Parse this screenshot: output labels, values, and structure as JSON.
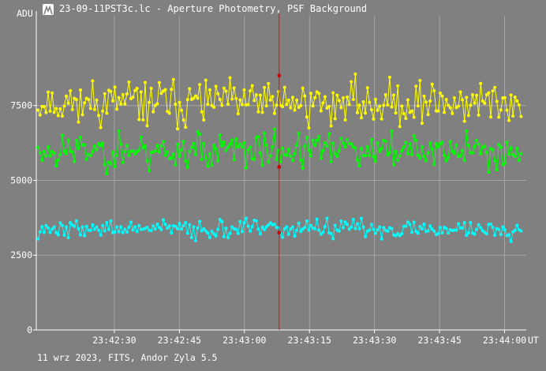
{
  "window": {
    "title": "23-09-11PST3c.lc - Aperture Photometry, PSF Background",
    "icon": "telescope-logo-icon"
  },
  "footer": {
    "text": "11 wrz 2023, FITS, Andor Zyla 5.5"
  },
  "colors": {
    "background": "#808080",
    "grid": "#a6a6a6",
    "axis": "#ffffff",
    "cursor": "#ff0000",
    "cursor_marker": "#cc0000"
  },
  "chart_data": {
    "type": "scatter",
    "ylabel": "ADU",
    "xunit": "UT",
    "grid": true,
    "xlim": [
      "23:42:12",
      "23:44:05"
    ],
    "ylim": [
      0,
      10500
    ],
    "xticks": [
      "23:42:30",
      "23:42:45",
      "23:43:00",
      "23:43:15",
      "23:43:30",
      "23:43:45",
      "23:44:00"
    ],
    "yticks": [
      0,
      2500,
      5000,
      7500
    ],
    "cursor": {
      "x": "23:43:08",
      "values": [
        8500,
        5450,
        3250
      ]
    },
    "series": [
      {
        "color": "#ffff00",
        "connected": true,
        "seed": 11,
        "mean": 7600,
        "sd": 500,
        "min": 5950,
        "max": 8950
      },
      {
        "color": "#00ff00",
        "connected": true,
        "seed": 23,
        "mean": 6000,
        "sd": 430,
        "min": 4800,
        "max": 7350
      },
      {
        "color": "#00ffff",
        "connected": true,
        "seed": 37,
        "mean": 3380,
        "sd": 210,
        "min": 2500,
        "max": 4150
      }
    ]
  }
}
